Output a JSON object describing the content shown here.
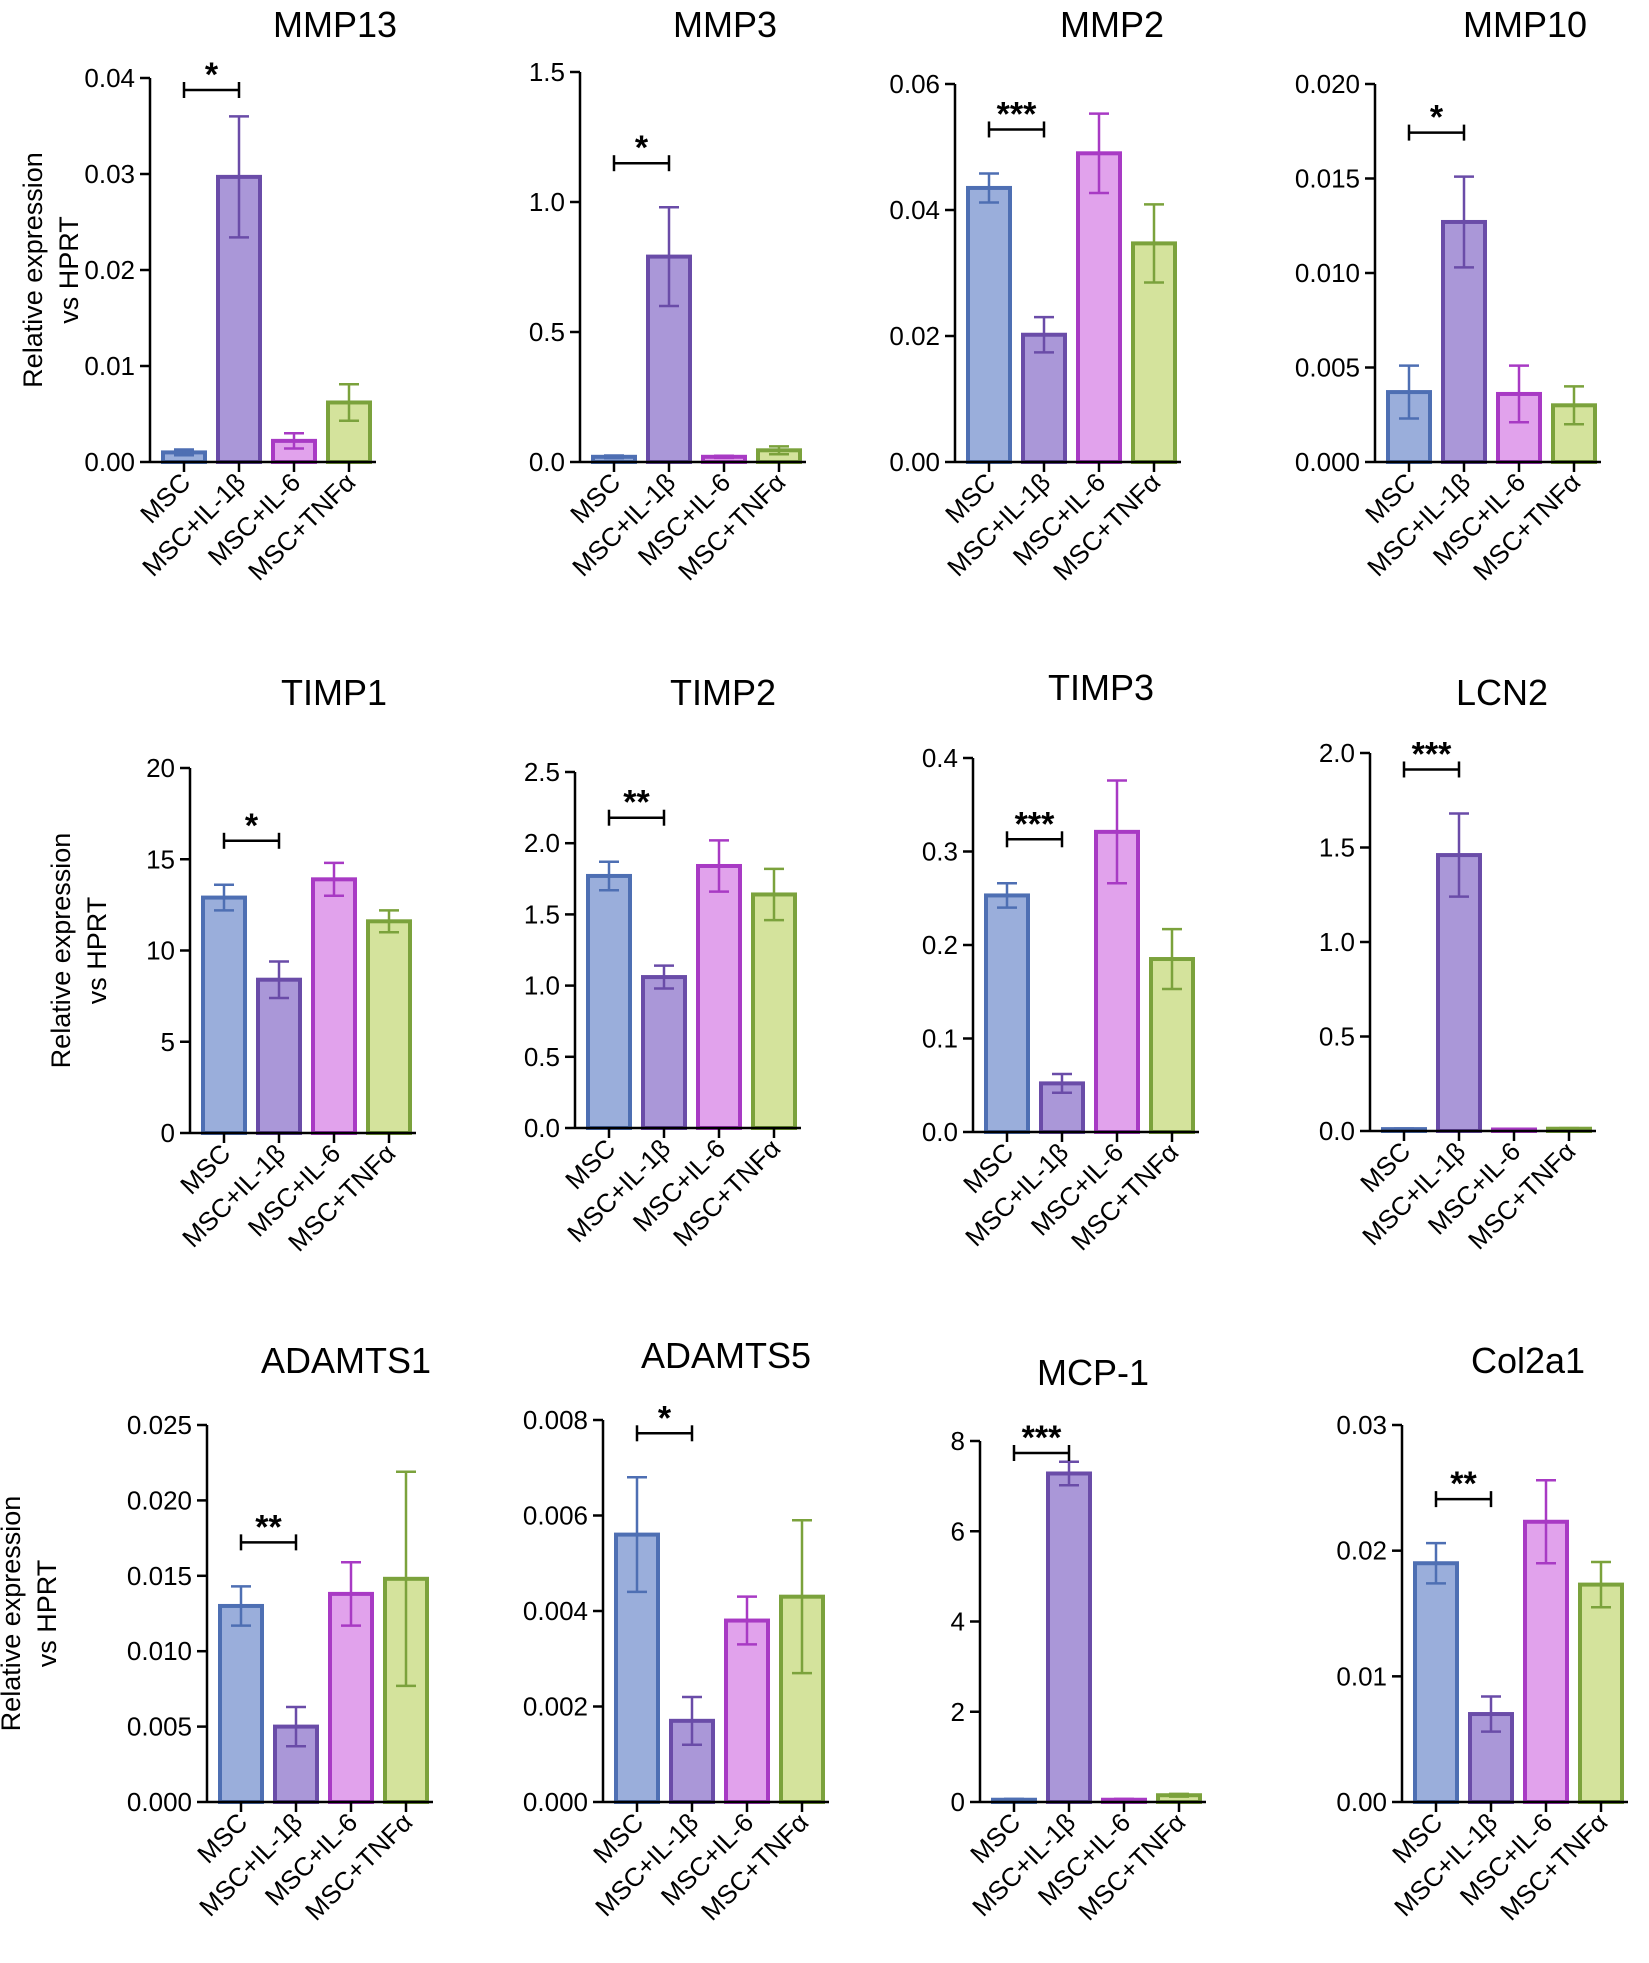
{
  "colors": {
    "fills": [
      "#9aaedb",
      "#aa97d8",
      "#e1a2ec",
      "#d4e39c"
    ],
    "strokes": [
      "#4e6fb3",
      "#6a4ca8",
      "#a83ac4",
      "#7ba23c"
    ]
  },
  "categories": [
    "MSC",
    "MSC+IL-1β",
    "MSC+IL-6",
    "MSC+TNFα"
  ],
  "ylabel_line1": "Relative expression",
  "ylabel_line2": "vs HPRT",
  "chart_data": [
    {
      "type": "bar",
      "title": "MMP13",
      "categories": [
        "MSC",
        "MSC+IL-1β",
        "MSC+IL-6",
        "MSC+TNFα"
      ],
      "values": [
        0.001,
        0.0297,
        0.0022,
        0.0062
      ],
      "errors": [
        0.0003,
        0.0063,
        0.0008,
        0.0019
      ],
      "ylim": [
        0,
        0.04
      ],
      "yticks": [
        0,
        0.01,
        0.02,
        0.03,
        0.04
      ],
      "yticklabels": [
        "0.00",
        "0.01",
        "0.02",
        "0.03",
        "0.04"
      ],
      "ylabel": "Relative expression vs HPRT",
      "significance": "*"
    },
    {
      "type": "bar",
      "title": "MMP3",
      "categories": [
        "MSC",
        "MSC+IL-1β",
        "MSC+IL-6",
        "MSC+TNFα"
      ],
      "values": [
        0.02,
        0.79,
        0.02,
        0.045
      ],
      "errors": [
        0.005,
        0.19,
        0.004,
        0.015
      ],
      "ylim": [
        0,
        1.5
      ],
      "yticks": [
        0,
        0.5,
        1.0,
        1.5
      ],
      "yticklabels": [
        "0.0",
        "0.5",
        "1.0",
        "1.5"
      ],
      "ylabel": "",
      "significance": "*"
    },
    {
      "type": "bar",
      "title": "MMP2",
      "categories": [
        "MSC",
        "MSC+IL-1β",
        "MSC+IL-6",
        "MSC+TNFα"
      ],
      "values": [
        0.0435,
        0.0202,
        0.049,
        0.0347
      ],
      "errors": [
        0.0023,
        0.0028,
        0.0063,
        0.0062
      ],
      "ylim": [
        0,
        0.06
      ],
      "yticks": [
        0,
        0.02,
        0.04,
        0.06
      ],
      "yticklabels": [
        "0.00",
        "0.02",
        "0.04",
        "0.06"
      ],
      "ylabel": "",
      "significance": "***"
    },
    {
      "type": "bar",
      "title": "MMP10",
      "categories": [
        "MSC",
        "MSC+IL-1β",
        "MSC+IL-6",
        "MSC+TNFα"
      ],
      "values": [
        0.0037,
        0.0127,
        0.0036,
        0.003
      ],
      "errors": [
        0.0014,
        0.0024,
        0.0015,
        0.001
      ],
      "ylim": [
        0,
        0.02
      ],
      "yticks": [
        0,
        0.005,
        0.01,
        0.015,
        0.02
      ],
      "yticklabels": [
        "0.000",
        "0.005",
        "0.010",
        "0.015",
        "0.020"
      ],
      "ylabel": "",
      "significance": "*"
    },
    {
      "type": "bar",
      "title": "TIMP1",
      "categories": [
        "MSC",
        "MSC+IL-1β",
        "MSC+IL-6",
        "MSC+TNFα"
      ],
      "values": [
        12.9,
        8.4,
        13.9,
        11.6
      ],
      "errors": [
        0.7,
        1.0,
        0.9,
        0.6
      ],
      "ylim": [
        0,
        20
      ],
      "yticks": [
        0,
        5,
        10,
        15,
        20
      ],
      "yticklabels": [
        "0",
        "5",
        "10",
        "15",
        "20"
      ],
      "ylabel": "Relative expression vs HPRT",
      "significance": "*"
    },
    {
      "type": "bar",
      "title": "TIMP2",
      "categories": [
        "MSC",
        "MSC+IL-1β",
        "MSC+IL-6",
        "MSC+TNFα"
      ],
      "values": [
        1.77,
        1.06,
        1.84,
        1.64
      ],
      "errors": [
        0.1,
        0.08,
        0.18,
        0.18
      ],
      "ylim": [
        0,
        2.5
      ],
      "yticks": [
        0,
        0.5,
        1.0,
        1.5,
        2.0,
        2.5
      ],
      "yticklabels": [
        "0.0",
        "0.5",
        "1.0",
        "1.5",
        "2.0",
        "2.5"
      ],
      "ylabel": "",
      "significance": "**"
    },
    {
      "type": "bar",
      "title": "TIMP3",
      "categories": [
        "MSC",
        "MSC+IL-1β",
        "MSC+IL-6",
        "MSC+TNFα"
      ],
      "values": [
        0.253,
        0.052,
        0.321,
        0.185
      ],
      "errors": [
        0.013,
        0.01,
        0.055,
        0.032
      ],
      "ylim": [
        0,
        0.4
      ],
      "yticks": [
        0,
        0.1,
        0.2,
        0.3,
        0.4
      ],
      "yticklabels": [
        "0.0",
        "0.1",
        "0.2",
        "0.3",
        "0.4"
      ],
      "ylabel": "",
      "significance": "***"
    },
    {
      "type": "bar",
      "title": "LCN2",
      "categories": [
        "MSC",
        "MSC+IL-1β",
        "MSC+IL-6",
        "MSC+TNFα"
      ],
      "values": [
        0.01,
        1.46,
        0.008,
        0.012
      ],
      "errors": [
        0.003,
        0.22,
        0.003,
        0.003
      ],
      "ylim": [
        0,
        2.0
      ],
      "yticks": [
        0,
        0.5,
        1.0,
        1.5,
        2.0
      ],
      "yticklabels": [
        "0.0",
        "0.5",
        "1.0",
        "1.5",
        "2.0"
      ],
      "ylabel": "",
      "significance": "***"
    },
    {
      "type": "bar",
      "title": "ADAMTS1",
      "categories": [
        "MSC",
        "MSC+IL-1β",
        "MSC+IL-6",
        "MSC+TNFα"
      ],
      "values": [
        0.013,
        0.005,
        0.0138,
        0.0148
      ],
      "errors": [
        0.0013,
        0.0013,
        0.0021,
        0.0071
      ],
      "ylim": [
        0,
        0.025
      ],
      "yticks": [
        0,
        0.005,
        0.01,
        0.015,
        0.02,
        0.025
      ],
      "yticklabels": [
        "0.000",
        "0.005",
        "0.010",
        "0.015",
        "0.020",
        "0.025"
      ],
      "ylabel": "Relative expression vs HPRT",
      "significance": "**"
    },
    {
      "type": "bar",
      "title": "ADAMTS5",
      "categories": [
        "MSC",
        "MSC+IL-1β",
        "MSC+IL-6",
        "MSC+TNFα"
      ],
      "values": [
        0.0056,
        0.0017,
        0.0038,
        0.0043
      ],
      "errors": [
        0.0012,
        0.0005,
        0.0005,
        0.0016
      ],
      "ylim": [
        0,
        0.008
      ],
      "yticks": [
        0,
        0.002,
        0.004,
        0.006,
        0.008
      ],
      "yticklabels": [
        "0.000",
        "0.002",
        "0.004",
        "0.006",
        "0.008"
      ],
      "ylabel": "",
      "significance": "*"
    },
    {
      "type": "bar",
      "title": "MCP-1",
      "categories": [
        "MSC",
        "MSC+IL-1β",
        "MSC+IL-6",
        "MSC+TNFα"
      ],
      "values": [
        0.05,
        7.28,
        0.05,
        0.15
      ],
      "errors": [
        0.02,
        0.26,
        0.02,
        0.03
      ],
      "ylim": [
        0,
        8
      ],
      "yticks": [
        0,
        2,
        4,
        6,
        8
      ],
      "yticklabels": [
        "0",
        "2",
        "4",
        "6",
        "8"
      ],
      "ylabel": "",
      "significance": "***"
    },
    {
      "type": "bar",
      "title": "Col2a1",
      "categories": [
        "MSC",
        "MSC+IL-1β",
        "MSC+IL-6",
        "MSC+TNFα"
      ],
      "values": [
        0.019,
        0.007,
        0.0223,
        0.0173
      ],
      "errors": [
        0.0016,
        0.0014,
        0.0033,
        0.0018
      ],
      "ylim": [
        0,
        0.03
      ],
      "yticks": [
        0,
        0.01,
        0.02,
        0.03
      ],
      "yticklabels": [
        "0.00",
        "0.01",
        "0.02",
        "0.03"
      ],
      "ylabel": "",
      "significance": "**"
    }
  ]
}
